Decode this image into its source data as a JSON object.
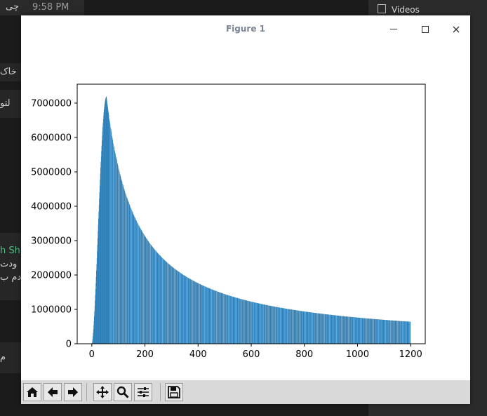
{
  "background": {
    "clock": "9:58 PM",
    "top_rtl_text": "چی",
    "sidebar_videos_label": "Videos",
    "chat_fragments": [
      "خاک",
      "لتو",
      "h Sh",
      "ودت",
      "دم ب",
      "م"
    ]
  },
  "window": {
    "title": "Figure 1",
    "toolbar_icons": [
      "home-icon",
      "back-arrow-icon",
      "forward-arrow-icon",
      "pan-icon",
      "zoom-icon",
      "configure-subplots-icon",
      "save-icon"
    ]
  },
  "chart_data": {
    "type": "bar",
    "color": "#1f77b4",
    "xlim": [
      -55,
      1255
    ],
    "ylim": [
      0,
      7550000
    ],
    "xticks": [
      "0",
      "200",
      "400",
      "600",
      "800",
      "1000",
      "1200"
    ],
    "yticks": [
      "0",
      "1000000",
      "2000000",
      "3000000",
      "4000000",
      "5000000",
      "6000000",
      "7000000"
    ],
    "peak_x": 55,
    "peak_y": 7190000,
    "x_max": 1200,
    "y_at_x_max": 640000
  }
}
